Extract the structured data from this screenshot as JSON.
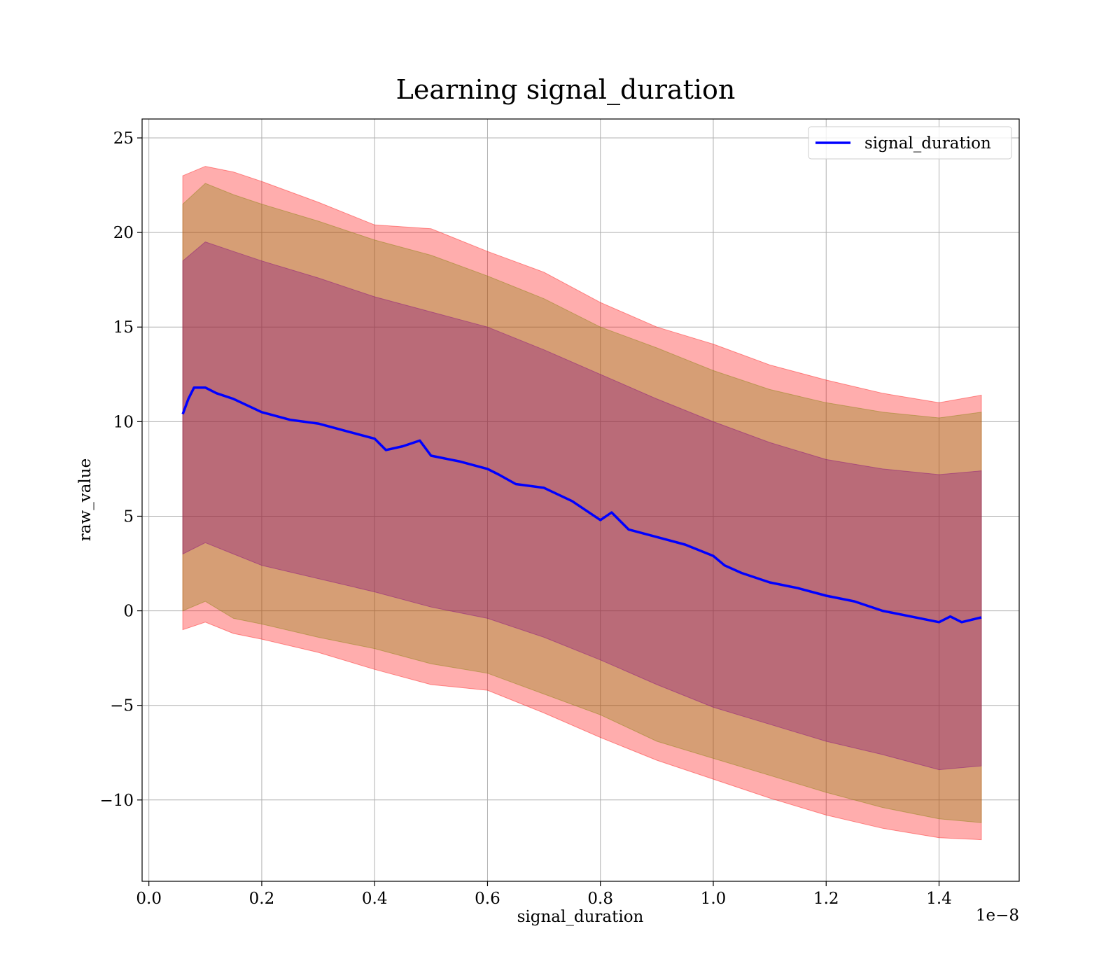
{
  "chart_data": {
    "type": "line",
    "title": "Learning signal_duration",
    "xlabel": "signal_duration",
    "ylabel": "raw_value",
    "x_offset_label": "1e−8",
    "xlim": [
      -0.012,
      1.542
    ],
    "ylim": [
      -14.3,
      26.0
    ],
    "x_ticks": [
      0.0,
      0.2,
      0.4,
      0.6,
      0.8,
      1.0,
      1.2,
      1.4
    ],
    "x_tick_labels": [
      "0.0",
      "0.2",
      "0.4",
      "0.6",
      "0.8",
      "1.0",
      "1.2",
      "1.4"
    ],
    "y_ticks": [
      -10,
      -5,
      0,
      5,
      10,
      15,
      20,
      25
    ],
    "y_tick_labels": [
      "−10",
      "−5",
      "0",
      "5",
      "10",
      "15",
      "20",
      "25"
    ],
    "grid": true,
    "legend": {
      "position": "top-right",
      "entries": [
        "signal_duration"
      ]
    },
    "colors": {
      "line": "#0000ff",
      "band_outer": "#ff0000",
      "band_middle": "#808000",
      "band_inner": "#800080"
    },
    "series": [
      {
        "name": "signal_duration",
        "x": [
          0.06,
          0.07,
          0.08,
          0.1,
          0.12,
          0.15,
          0.2,
          0.25,
          0.3,
          0.35,
          0.4,
          0.42,
          0.45,
          0.48,
          0.5,
          0.55,
          0.6,
          0.62,
          0.65,
          0.7,
          0.75,
          0.8,
          0.82,
          0.85,
          0.9,
          0.95,
          1.0,
          1.02,
          1.05,
          1.1,
          1.15,
          1.2,
          1.25,
          1.3,
          1.35,
          1.4,
          1.42,
          1.44,
          1.475
        ],
        "values": [
          10.4,
          11.2,
          11.8,
          11.8,
          11.5,
          11.2,
          10.5,
          10.1,
          9.9,
          9.5,
          9.1,
          8.5,
          8.7,
          9.0,
          8.2,
          7.9,
          7.5,
          7.2,
          6.7,
          6.5,
          5.8,
          4.8,
          5.2,
          4.3,
          3.9,
          3.5,
          2.9,
          2.4,
          2.0,
          1.5,
          1.2,
          0.8,
          0.5,
          0.0,
          -0.3,
          -0.6,
          -0.3,
          -0.6,
          -0.35
        ]
      }
    ],
    "bands": [
      {
        "color": "band_outer",
        "x": [
          0.06,
          0.1,
          0.15,
          0.2,
          0.3,
          0.4,
          0.5,
          0.6,
          0.7,
          0.8,
          0.9,
          1.0,
          1.1,
          1.2,
          1.3,
          1.4,
          1.475
        ],
        "upper": [
          23.0,
          23.5,
          23.2,
          22.7,
          21.6,
          20.4,
          20.2,
          19.0,
          17.9,
          16.3,
          15.0,
          14.1,
          13.0,
          12.2,
          11.5,
          11.0,
          11.4
        ],
        "lower": [
          -1.0,
          -0.6,
          -1.2,
          -1.5,
          -2.2,
          -3.1,
          -3.9,
          -4.2,
          -5.4,
          -6.7,
          -7.9,
          -8.9,
          -9.9,
          -10.8,
          -11.5,
          -12.0,
          -12.1
        ]
      },
      {
        "color": "band_middle",
        "x": [
          0.06,
          0.1,
          0.15,
          0.2,
          0.3,
          0.4,
          0.5,
          0.6,
          0.7,
          0.8,
          0.9,
          1.0,
          1.1,
          1.2,
          1.3,
          1.4,
          1.475
        ],
        "upper": [
          21.5,
          22.6,
          22.0,
          21.5,
          20.6,
          19.6,
          18.8,
          17.7,
          16.5,
          15.0,
          13.9,
          12.7,
          11.7,
          11.0,
          10.5,
          10.2,
          10.5
        ],
        "lower": [
          0.0,
          0.5,
          -0.4,
          -0.7,
          -1.4,
          -2.0,
          -2.8,
          -3.3,
          -4.4,
          -5.5,
          -6.9,
          -7.8,
          -8.7,
          -9.6,
          -10.4,
          -11.0,
          -11.2
        ]
      },
      {
        "color": "band_inner",
        "x": [
          0.06,
          0.1,
          0.15,
          0.2,
          0.3,
          0.4,
          0.5,
          0.6,
          0.7,
          0.8,
          0.9,
          1.0,
          1.1,
          1.2,
          1.3,
          1.4,
          1.475
        ],
        "upper": [
          18.5,
          19.5,
          19.0,
          18.5,
          17.6,
          16.6,
          15.8,
          15.0,
          13.8,
          12.5,
          11.2,
          10.0,
          8.9,
          8.0,
          7.5,
          7.2,
          7.4
        ],
        "lower": [
          3.0,
          3.6,
          3.0,
          2.4,
          1.7,
          1.0,
          0.2,
          -0.4,
          -1.4,
          -2.6,
          -3.9,
          -5.1,
          -6.0,
          -6.9,
          -7.6,
          -8.4,
          -8.2
        ]
      }
    ]
  }
}
